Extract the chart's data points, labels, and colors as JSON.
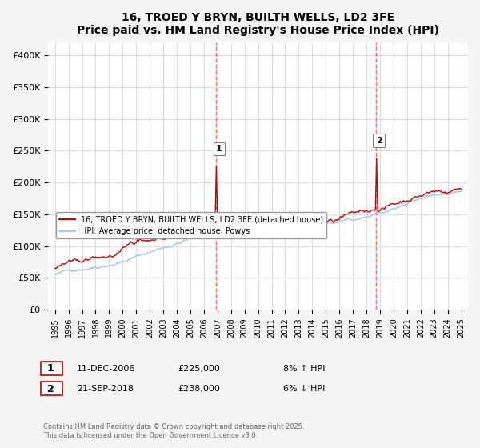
{
  "title": "16, TROED Y BRYN, BUILTH WELLS, LD2 3FE",
  "subtitle": "Price paid vs. HM Land Registry's House Price Index (HPI)",
  "ylabel_ticks": [
    "£0",
    "£50K",
    "£100K",
    "£150K",
    "£200K",
    "£250K",
    "£300K",
    "£350K",
    "£400K"
  ],
  "ytick_values": [
    0,
    50000,
    100000,
    150000,
    200000,
    250000,
    300000,
    350000,
    400000
  ],
  "ylim": [
    0,
    420000
  ],
  "x_start_year": 1995,
  "x_end_year": 2025,
  "sale1_year": 2006.92,
  "sale1_price": 225000,
  "sale1_label": "1",
  "sale1_date": "11-DEC-2006",
  "sale1_pct": "8% ↑ HPI",
  "sale2_year": 2018.72,
  "sale2_price": 238000,
  "sale2_label": "2",
  "sale2_date": "21-SEP-2018",
  "sale2_pct": "6% ↓ HPI",
  "hpi_color": "#aec6e8",
  "price_color": "#cc0000",
  "vline_color": "#ff4444",
  "legend_label_price": "16, TROED Y BRYN, BUILTH WELLS, LD2 3FE (detached house)",
  "legend_label_hpi": "HPI: Average price, detached house, Powys",
  "footnote": "Contains HM Land Registry data © Crown copyright and database right 2025.\nThis data is licensed under the Open Government Licence v3.0.",
  "background_color": "#f5f5f5",
  "plot_bg_color": "#ffffff"
}
